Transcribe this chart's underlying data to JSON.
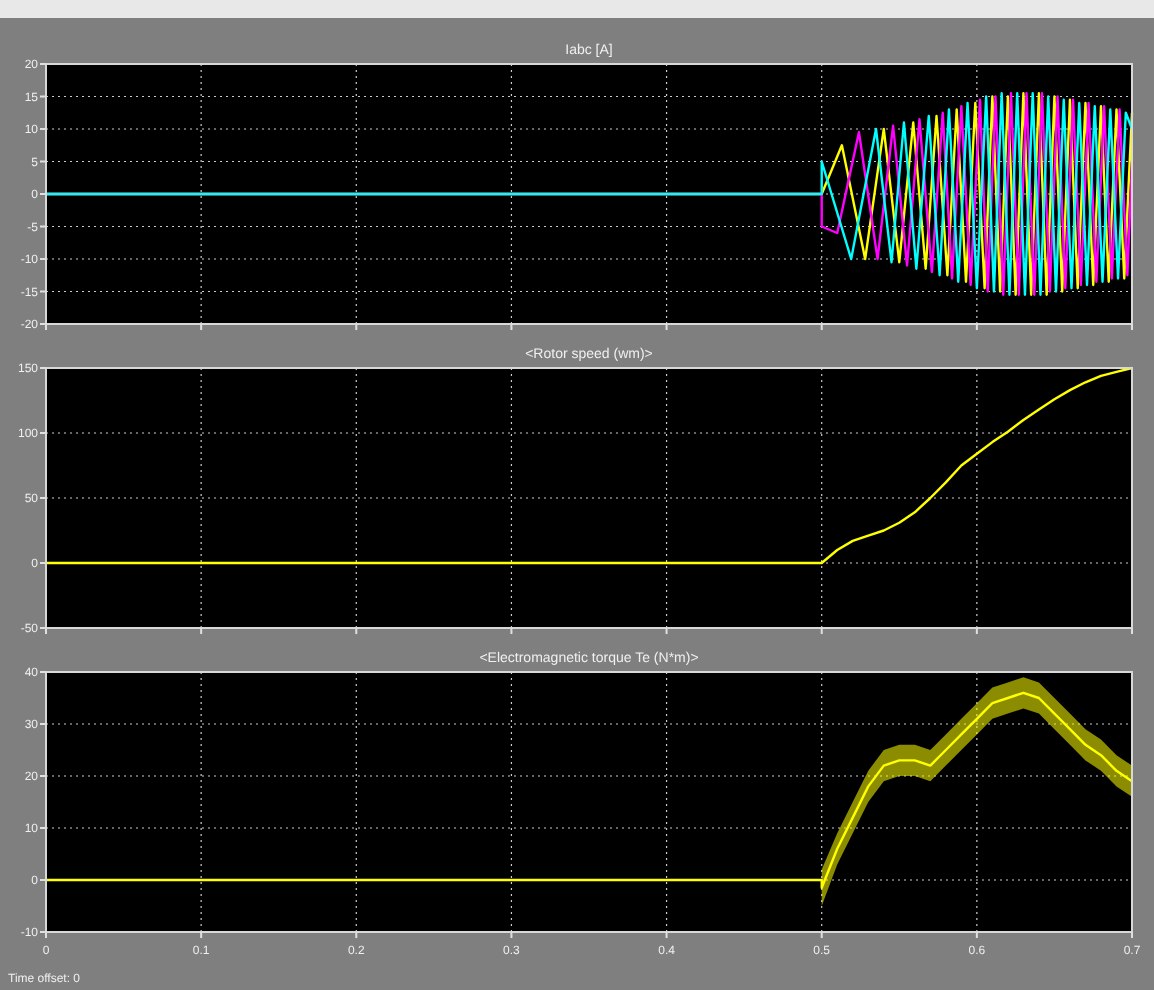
{
  "chart_data": [
    {
      "type": "line",
      "title": "Iabc [A]",
      "xlim": [
        0,
        0.7
      ],
      "xticks": [
        0,
        0.1,
        0.2,
        0.3,
        0.4,
        0.5,
        0.6,
        0.7
      ],
      "ylim": [
        -20,
        20
      ],
      "yticks": [
        -20,
        -15,
        -10,
        -5,
        0,
        5,
        10,
        15,
        20
      ],
      "grid": true,
      "tick_labels": "y",
      "series": [
        {
          "color": "#ffff00",
          "x": [
            0,
            0.5,
            0.513,
            0.528,
            0.54,
            0.55,
            0.559,
            0.567,
            0.574,
            0.581,
            0.587,
            0.593,
            0.599,
            0.605,
            0.61,
            0.615,
            0.62,
            0.625,
            0.63,
            0.635,
            0.64,
            0.645,
            0.65,
            0.655,
            0.66,
            0.665,
            0.67,
            0.675,
            0.68,
            0.685,
            0.69,
            0.695,
            0.7
          ],
          "values": [
            0,
            0,
            7.5,
            -10,
            10,
            -10.5,
            11,
            -11.5,
            12,
            -12.5,
            13,
            -13.5,
            14,
            -14.5,
            15,
            -15,
            15,
            -15.5,
            15.5,
            -15.5,
            15.5,
            -15.5,
            15,
            -15,
            14.5,
            -14.5,
            14,
            -14,
            13.5,
            -13.5,
            13,
            -13,
            12.5
          ]
        },
        {
          "color": "#ff00ff",
          "x": [
            0,
            0.5,
            0.5,
            0.51,
            0.524,
            0.536,
            0.546,
            0.555,
            0.563,
            0.571,
            0.578,
            0.584,
            0.59,
            0.596,
            0.602,
            0.607,
            0.612,
            0.617,
            0.622,
            0.627,
            0.632,
            0.637,
            0.642,
            0.647,
            0.652,
            0.657,
            0.662,
            0.667,
            0.672,
            0.677,
            0.682,
            0.687,
            0.692,
            0.697,
            0.7
          ],
          "values": [
            0,
            0,
            -5,
            -6,
            9.5,
            -10,
            10.5,
            -11,
            11.5,
            -12,
            12.5,
            -13,
            13.5,
            -14,
            14.5,
            -15,
            15,
            -15.5,
            15.5,
            -15.5,
            15.5,
            -15.5,
            15.5,
            -15,
            15,
            -14.5,
            14.5,
            -14,
            14,
            -13.5,
            13.5,
            -13,
            13,
            -12.5,
            5
          ]
        },
        {
          "color": "#00ffff",
          "x": [
            0,
            0.5,
            0.5,
            0.519,
            0.535,
            0.545,
            0.553,
            0.561,
            0.569,
            0.576,
            0.582,
            0.588,
            0.594,
            0.6,
            0.606,
            0.611,
            0.616,
            0.621,
            0.626,
            0.631,
            0.636,
            0.641,
            0.646,
            0.651,
            0.656,
            0.661,
            0.666,
            0.671,
            0.676,
            0.681,
            0.686,
            0.691,
            0.696,
            0.7
          ],
          "values": [
            0,
            0,
            5,
            -10,
            10,
            -10.5,
            11,
            -11.5,
            12,
            -12.5,
            13,
            -13.5,
            14,
            -14.5,
            15,
            -15,
            15.5,
            -15.5,
            15.5,
            -15.5,
            15.5,
            -15.5,
            15,
            -15,
            14.5,
            -14.5,
            14,
            -14,
            13.5,
            -13.5,
            13,
            -13,
            12.5,
            10
          ]
        }
      ]
    },
    {
      "type": "line",
      "title": "<Rotor speed (wm)>",
      "xlim": [
        0,
        0.7
      ],
      "xticks": [
        0,
        0.1,
        0.2,
        0.3,
        0.4,
        0.5,
        0.6,
        0.7
      ],
      "ylim": [
        -50,
        150
      ],
      "yticks": [
        -50,
        0,
        50,
        100,
        150
      ],
      "grid": true,
      "tick_labels": "y",
      "series": [
        {
          "color": "#ffff00",
          "x": [
            0,
            0.5,
            0.51,
            0.52,
            0.53,
            0.54,
            0.55,
            0.56,
            0.57,
            0.58,
            0.59,
            0.6,
            0.61,
            0.62,
            0.63,
            0.64,
            0.65,
            0.66,
            0.67,
            0.68,
            0.69,
            0.7
          ],
          "values": [
            0,
            0,
            10,
            17,
            21,
            25,
            31,
            39,
            50,
            62,
            75,
            84,
            93,
            101,
            110,
            118,
            126,
            133,
            139,
            144,
            147,
            150
          ]
        }
      ]
    },
    {
      "type": "line",
      "title": "<Electromagnetic torque Te (N*m)>",
      "xlim": [
        0,
        0.7
      ],
      "xticks": [
        0,
        0.1,
        0.2,
        0.3,
        0.4,
        0.5,
        0.6,
        0.7
      ],
      "ylim": [
        -10,
        40
      ],
      "yticks": [
        -10,
        0,
        10,
        20,
        30,
        40
      ],
      "grid": true,
      "annotations": [
        "Time offset:  0"
      ],
      "series": [
        {
          "color": "#ffff00",
          "x": [
            0,
            0.5,
            0.5,
            0.51,
            0.52,
            0.53,
            0.54,
            0.55,
            0.56,
            0.57,
            0.58,
            0.59,
            0.6,
            0.61,
            0.62,
            0.63,
            0.64,
            0.65,
            0.66,
            0.67,
            0.68,
            0.69,
            0.7
          ],
          "values": [
            0,
            0,
            -1.5,
            6,
            12,
            18,
            22,
            23,
            23,
            22,
            25,
            28,
            31,
            34,
            35,
            36,
            35,
            32,
            29,
            26,
            24,
            21,
            19
          ],
          "lower": [
            0,
            0,
            -5,
            3,
            9,
            15,
            19,
            20,
            20,
            19,
            22,
            25,
            28,
            31,
            32,
            33,
            32,
            29,
            26,
            23,
            21,
            18,
            16
          ],
          "upper": [
            0,
            0,
            2,
            9,
            15,
            21,
            25,
            26,
            26,
            25,
            28,
            31,
            34,
            37,
            38,
            39,
            38,
            35,
            32,
            29,
            27,
            24,
            22
          ]
        }
      ]
    }
  ]
}
